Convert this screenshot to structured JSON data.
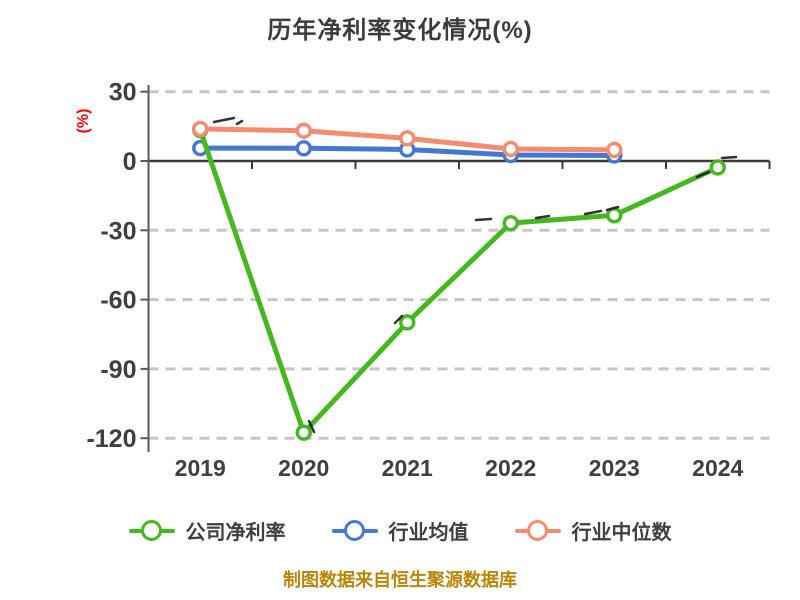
{
  "title": "历年净利率变化情况(%)",
  "footer": {
    "text": "制图数据来自恒生聚源数据库",
    "color": "#b8860b"
  },
  "y_axis": {
    "label": "(%)",
    "label_color": "#ff0000",
    "tick_labels": [
      "30",
      "0",
      "-30",
      "-60",
      "-90",
      "-120"
    ],
    "tick_values": [
      30,
      0,
      -30,
      -60,
      -90,
      -120
    ]
  },
  "x_axis": {
    "tick_labels": [
      "2019",
      "2020",
      "2021",
      "2022",
      "2023",
      "2024"
    ]
  },
  "legend": [
    {
      "label": "公司净利率",
      "color": "#45b820"
    },
    {
      "label": "行业均值",
      "color": "#4577d4"
    },
    {
      "label": "行业中位数",
      "color": "#f58b6f"
    }
  ],
  "colors": {
    "title_text": "#3c3c3c",
    "axis_text": "#3f3f3f",
    "zero_axis_line": "#3a3a3a",
    "grid_dashed": "#c6c6c6",
    "left_spine": "#5a5a5a",
    "marker_fill": "#ffffff"
  },
  "chart_data": {
    "type": "line",
    "title": "历年净利率变化情况(%)",
    "ylabel": "(%)",
    "x": [
      "2019",
      "2020",
      "2021",
      "2022",
      "2023",
      "2024"
    ],
    "series": [
      {
        "name": "公司净利率",
        "color": "#45b820",
        "values": [
          13.4,
          -117.6,
          -69.9,
          -26.9,
          -23.5,
          -2.8
        ]
      },
      {
        "name": "行业均值",
        "color": "#4577d4",
        "values": [
          5.6,
          5.5,
          5.0,
          2.6,
          2.4,
          null
        ]
      },
      {
        "name": "行业中位数",
        "color": "#f58b6f",
        "values": [
          13.9,
          13.1,
          9.8,
          5.2,
          4.8,
          null
        ]
      }
    ],
    "ylim": [
      -120,
      30
    ],
    "y_tick_step": 30,
    "grid": "horizontal dashed, solid dark line at 0 with downward ticks at band edges",
    "legend_position": "bottom",
    "marker": "circle, white fill, colored ring",
    "note": "行业均值 and 行业中位数 have no data point for 2024"
  }
}
